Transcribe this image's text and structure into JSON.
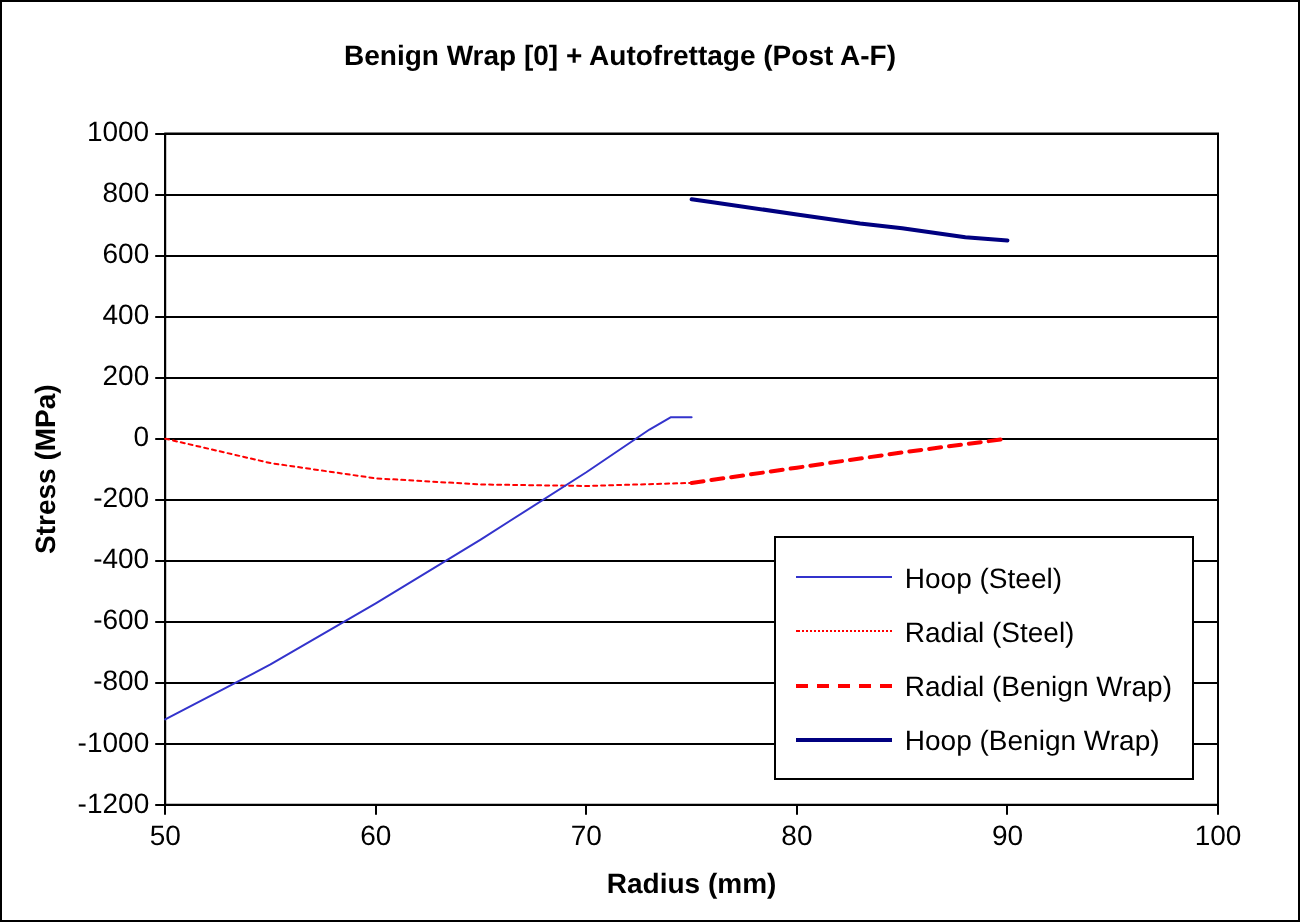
{
  "chart_data": {
    "type": "line",
    "title": "Benign Wrap [0] + Autofrettage (Post A-F)",
    "xlabel": "Radius (mm)",
    "ylabel": "Stress (MPa)",
    "xlim": [
      50,
      100
    ],
    "xticks": [
      50,
      60,
      70,
      80,
      90,
      100
    ],
    "ylim": [
      -1200,
      1000
    ],
    "yticks": [
      -1200,
      -1000,
      -800,
      -600,
      -400,
      -200,
      0,
      200,
      400,
      600,
      800,
      1000
    ],
    "grid": "y",
    "legend": "bottom right",
    "marker": "none",
    "series": [
      {
        "name": "Hoop (Steel)",
        "color": "#3333cc",
        "line_style": "solid",
        "x": [
          50,
          55,
          60,
          65,
          70,
          73,
          74,
          75
        ],
        "values": [
          -920,
          -740,
          -540,
          -330,
          -110,
          30,
          70,
          70
        ]
      },
      {
        "name": "Radial (Steel)",
        "color": "#ff0000",
        "line_style": "dotted",
        "x": [
          50,
          55,
          60,
          65,
          70,
          75
        ],
        "values": [
          0,
          -80,
          -130,
          -150,
          -155,
          -145
        ]
      },
      {
        "name": "Radial (Benign Wrap)",
        "color": "#ff0000",
        "line_style": "dashed",
        "x": [
          75,
          80,
          85,
          90
        ],
        "values": [
          -145,
          -95,
          -45,
          0
        ]
      },
      {
        "name": "Hoop (Benign Wrap)",
        "color": "#000080",
        "line_style": "solid",
        "x": [
          75,
          76,
          80,
          83,
          85,
          88,
          90
        ],
        "values": [
          785,
          775,
          735,
          705,
          690,
          660,
          650
        ]
      }
    ]
  }
}
